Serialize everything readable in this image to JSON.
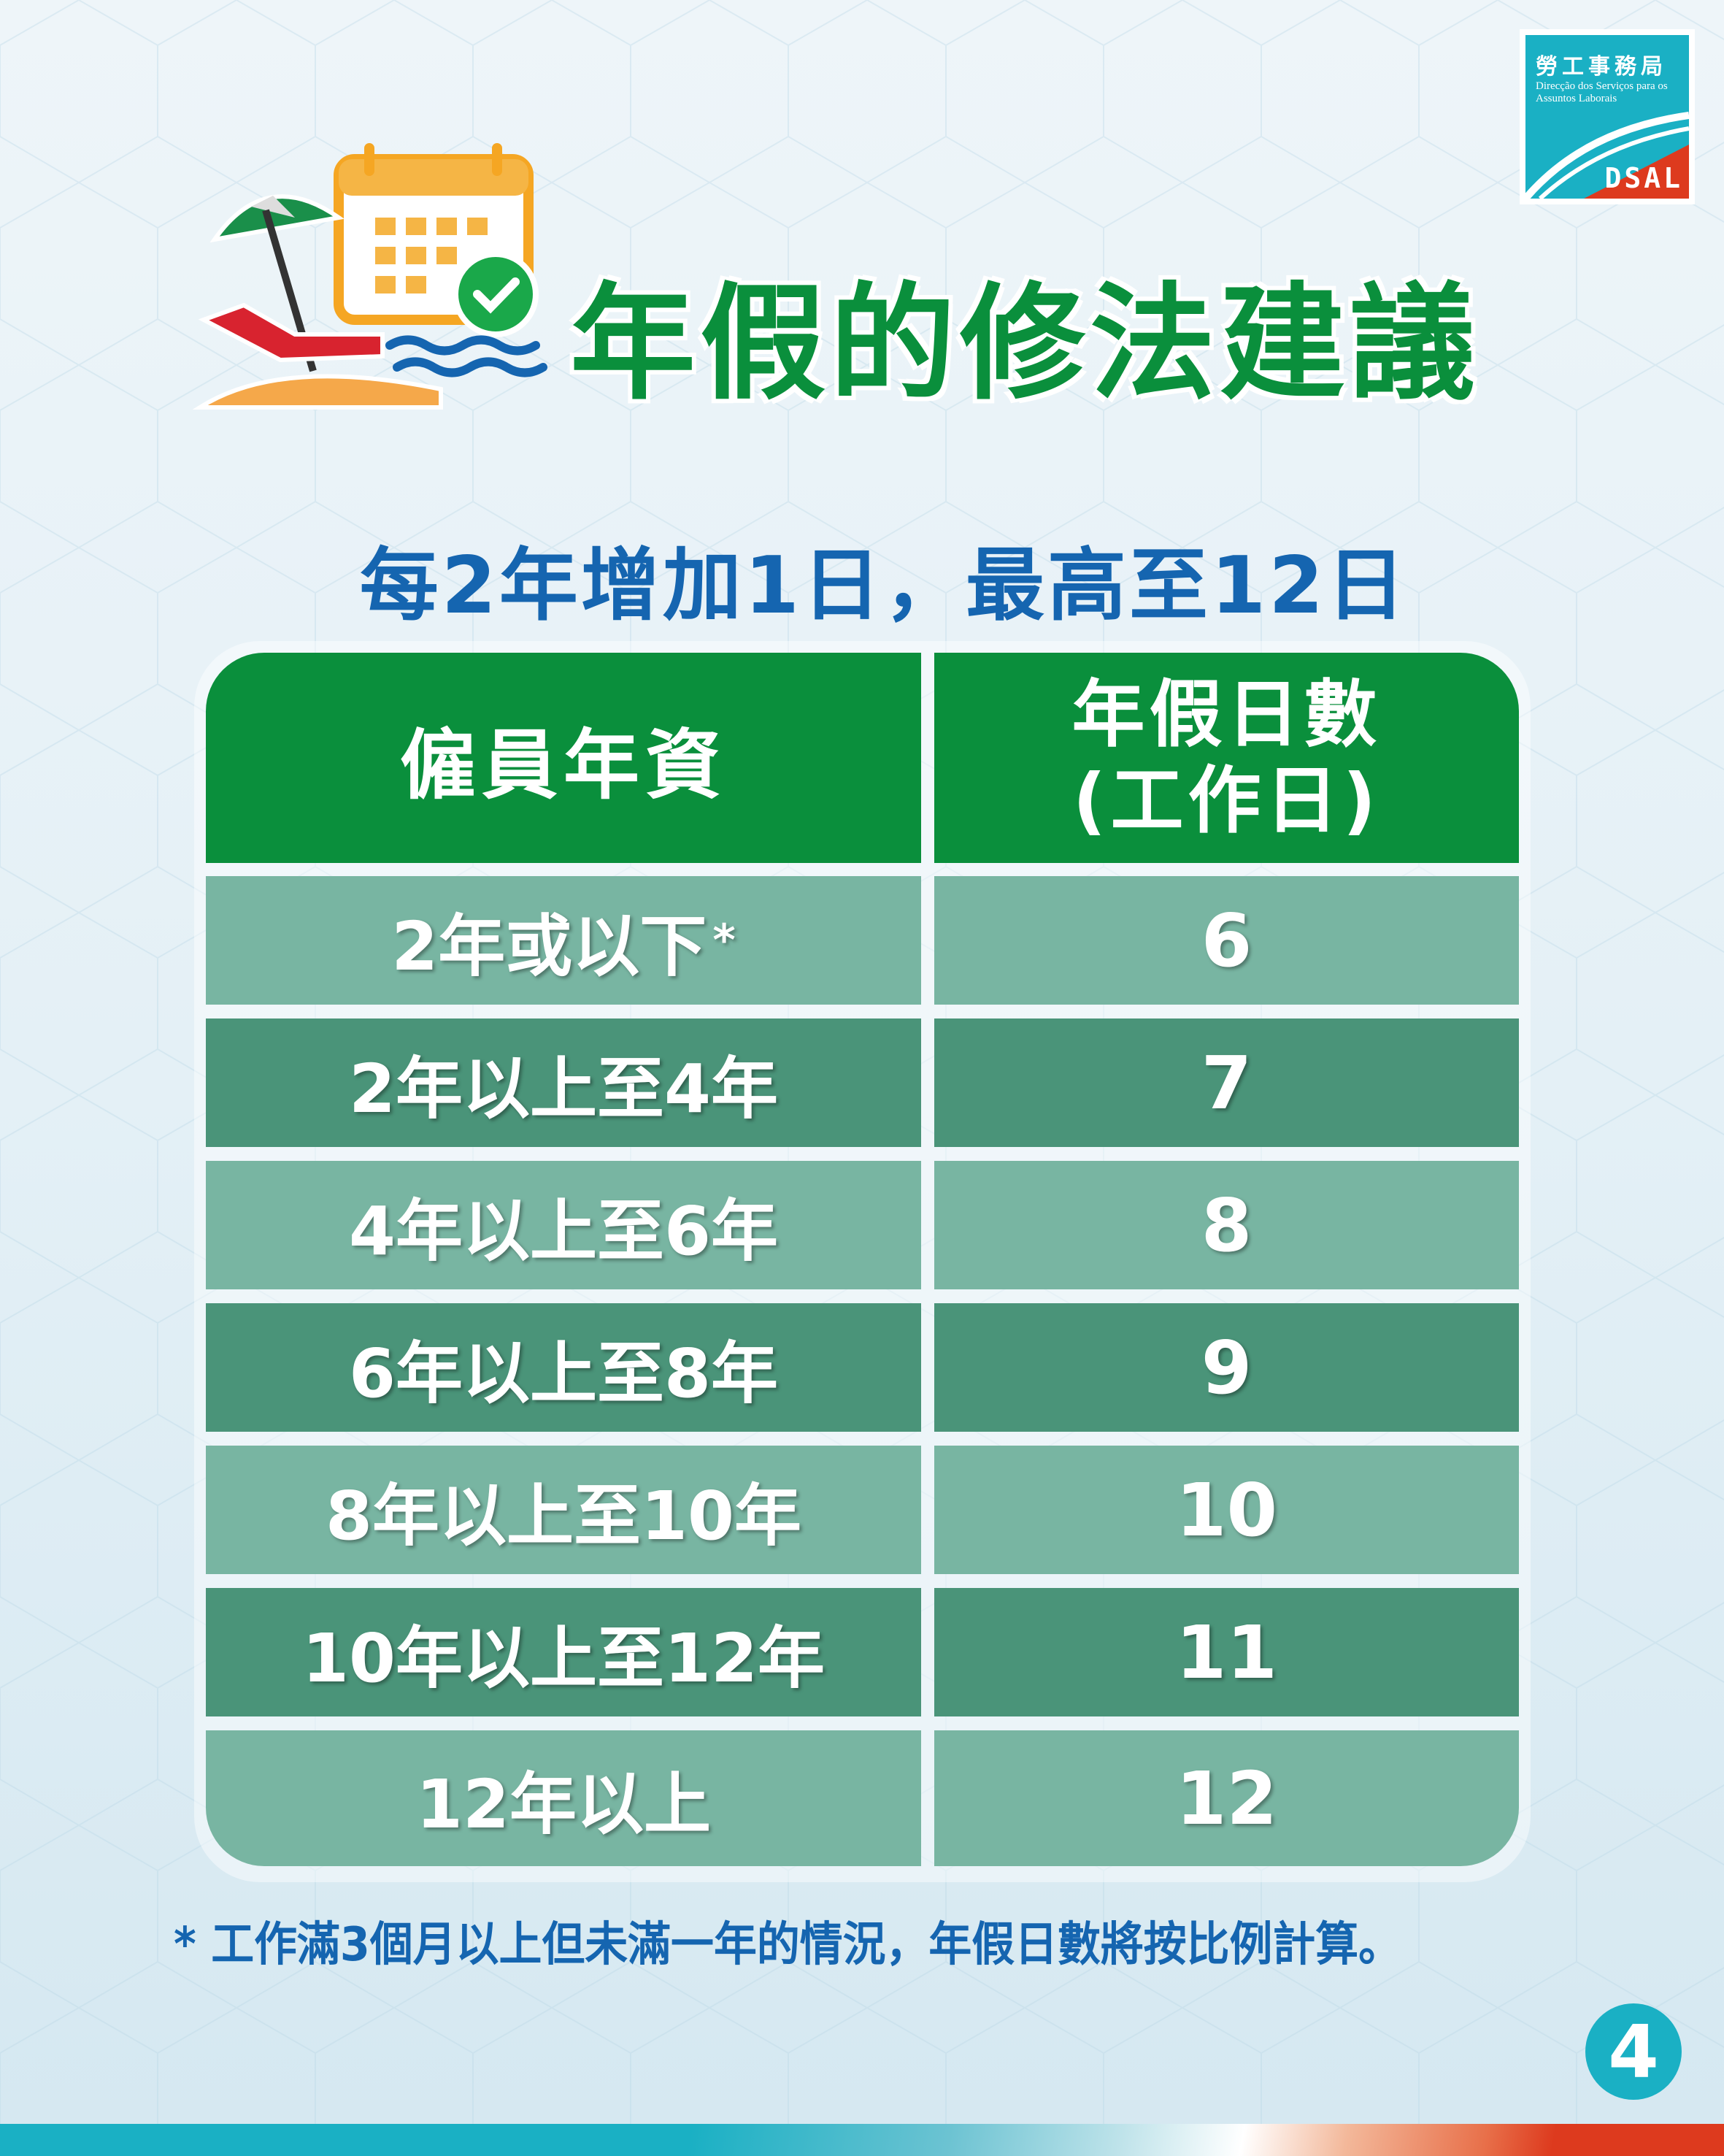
{
  "logo": {
    "chinese": "勞工事務局",
    "portuguese": "Direcção dos Serviços para os Assuntos Laborais",
    "abbr": "DSAL"
  },
  "title": "年假的修法建議",
  "subtitle": "每2年增加1日，最高至12日",
  "table": {
    "headers": [
      "僱員年資",
      "年假日數",
      "(工作日)"
    ],
    "rows": [
      {
        "seniority": "2年或以下",
        "marker": "*",
        "days": "6"
      },
      {
        "seniority": "2年以上至4年",
        "days": "7"
      },
      {
        "seniority": "4年以上至6年",
        "days": "8"
      },
      {
        "seniority": "6年以上至8年",
        "days": "9"
      },
      {
        "seniority": "8年以上至10年",
        "days": "10"
      },
      {
        "seniority": "10年以上至12年",
        "days": "11"
      },
      {
        "seniority": "12年以上",
        "days": "12"
      }
    ]
  },
  "footnote": "* 工作滿3個月以上但未滿一年的情況，年假日數將按比例計算。",
  "page_number": "4",
  "colors": {
    "green": "#0a8f3c",
    "blue": "#1565b0",
    "row_light": "#78b5a2",
    "row_dark": "#4a9479",
    "teal": "#1ab0c4",
    "red": "#dd3a1e"
  }
}
